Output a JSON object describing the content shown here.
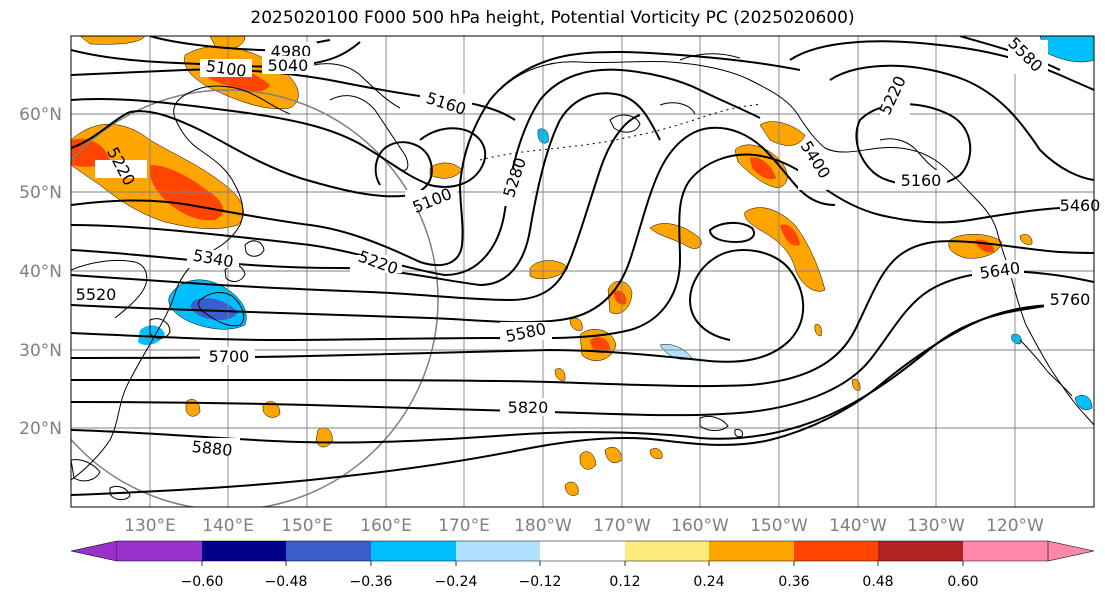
{
  "title": "2025020100 F000 500 hPa height, Potential Vorticity PC (2025020600)",
  "lat_labels": [
    "60°N",
    "50°N",
    "40°N",
    "30°N",
    "20°N"
  ],
  "lon_labels": [
    "130°E",
    "140°E",
    "150°E",
    "160°E",
    "170°E",
    "180°W",
    "170°W",
    "160°W",
    "150°W",
    "140°W",
    "130°W",
    "120°W"
  ],
  "contour_labels": [
    "4980",
    "5040",
    "5100",
    "5160",
    "5220",
    "5100",
    "5280",
    "5340",
    "5220",
    "5520",
    "5400",
    "5160",
    "5220",
    "5460",
    "5640",
    "5760",
    "5580",
    "5700",
    "5820",
    "5880",
    "5580"
  ],
  "colorbar": {
    "ticks": [
      "−0.60",
      "−0.48",
      "−0.36",
      "−0.24",
      "−0.12",
      "0.12",
      "0.24",
      "0.36",
      "0.48",
      "0.60"
    ],
    "colors": [
      "#9932cc",
      "#00008b",
      "#3a5fcd",
      "#00bfff",
      "#b0e2ff",
      "#ffffff",
      "#ffeb80",
      "#ffa500",
      "#ff4500",
      "#b22222",
      "#ff88aa"
    ]
  },
  "colors": {
    "land_outline": "#000000",
    "grid": "#808080",
    "contour": "#000000",
    "pv_light_orange": "#ffa500",
    "pv_red": "#ff4500",
    "pv_blue": "#00bfff",
    "pv_darkblue": "#3a5fcd"
  }
}
